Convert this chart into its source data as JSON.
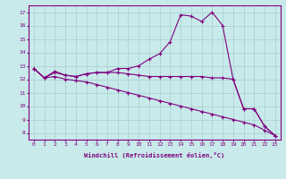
{
  "x": [
    0,
    1,
    2,
    3,
    4,
    5,
    6,
    7,
    8,
    9,
    10,
    11,
    12,
    13,
    14,
    15,
    16,
    17,
    18,
    19,
    20,
    21,
    22,
    23
  ],
  "line1": [
    12.8,
    12.1,
    12.6,
    12.3,
    12.2,
    12.4,
    12.5,
    12.5,
    12.8,
    12.8,
    13.0,
    13.5,
    13.9,
    14.8,
    16.8,
    16.7,
    16.3,
    17.0,
    16.0,
    12.0,
    9.8,
    9.8,
    8.5,
    7.8
  ],
  "line2": [
    12.8,
    12.1,
    12.5,
    12.3,
    12.2,
    12.4,
    12.5,
    12.5,
    12.5,
    12.4,
    12.3,
    12.2,
    12.2,
    12.2,
    12.2,
    12.2,
    12.2,
    12.1,
    12.1,
    12.0,
    9.8,
    9.8,
    8.5,
    7.8
  ],
  "line3": [
    12.8,
    12.1,
    12.2,
    12.0,
    11.9,
    11.8,
    11.6,
    11.4,
    11.2,
    11.0,
    10.8,
    10.6,
    10.4,
    10.2,
    10.0,
    9.8,
    9.6,
    9.4,
    9.2,
    9.0,
    8.8,
    8.6,
    8.2,
    7.8
  ],
  "line_color": "#800080",
  "bg_color": "#c8eaea",
  "grid_color": "#a8cece",
  "ylabel_values": [
    8,
    9,
    10,
    11,
    12,
    13,
    14,
    15,
    16,
    17
  ],
  "ylim": [
    7.5,
    17.5
  ],
  "xlim": [
    -0.5,
    23.5
  ],
  "xlabel": "Windchill (Refroidissement éolien,°C)",
  "font_color": "#800080",
  "tick_fontsize": 4.5,
  "xlabel_fontsize": 5.0
}
